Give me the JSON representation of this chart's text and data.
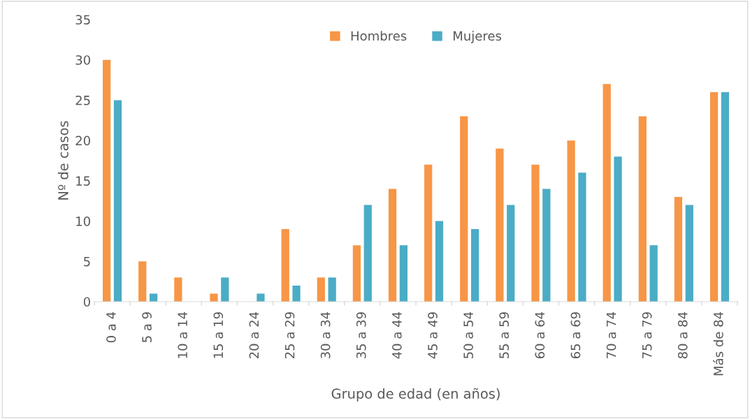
{
  "chart_data": {
    "type": "bar",
    "xlabel": "Grupo de edad (en años)",
    "ylabel": "Nº de casos",
    "categories": [
      "0 a 4",
      "5 a 9",
      "10 a 14",
      "15 a 19",
      "20 a 24",
      "25 a 29",
      "30 a 34",
      "35 a 39",
      "40 a 44",
      "45 a 49",
      "50 a 54",
      "55 a 59",
      "60 a 64",
      "65 a 69",
      "70 a 74",
      "75 a 79",
      "80 a 84",
      "Más de 84"
    ],
    "series": [
      {
        "name": "Hombres",
        "color": "#f79646",
        "values": [
          30,
          5,
          3,
          1,
          0,
          9,
          3,
          7,
          14,
          17,
          23,
          19,
          17,
          20,
          27,
          23,
          13,
          26
        ]
      },
      {
        "name": "Mujeres",
        "color": "#4bacc6",
        "values": [
          25,
          1,
          0,
          3,
          1,
          2,
          3,
          12,
          7,
          10,
          9,
          12,
          14,
          16,
          18,
          7,
          12,
          26
        ]
      }
    ],
    "ylim": [
      0,
      35
    ],
    "yticks": [
      0,
      5,
      10,
      15,
      20,
      25,
      30,
      35
    ],
    "grid": false,
    "legend": "top"
  }
}
